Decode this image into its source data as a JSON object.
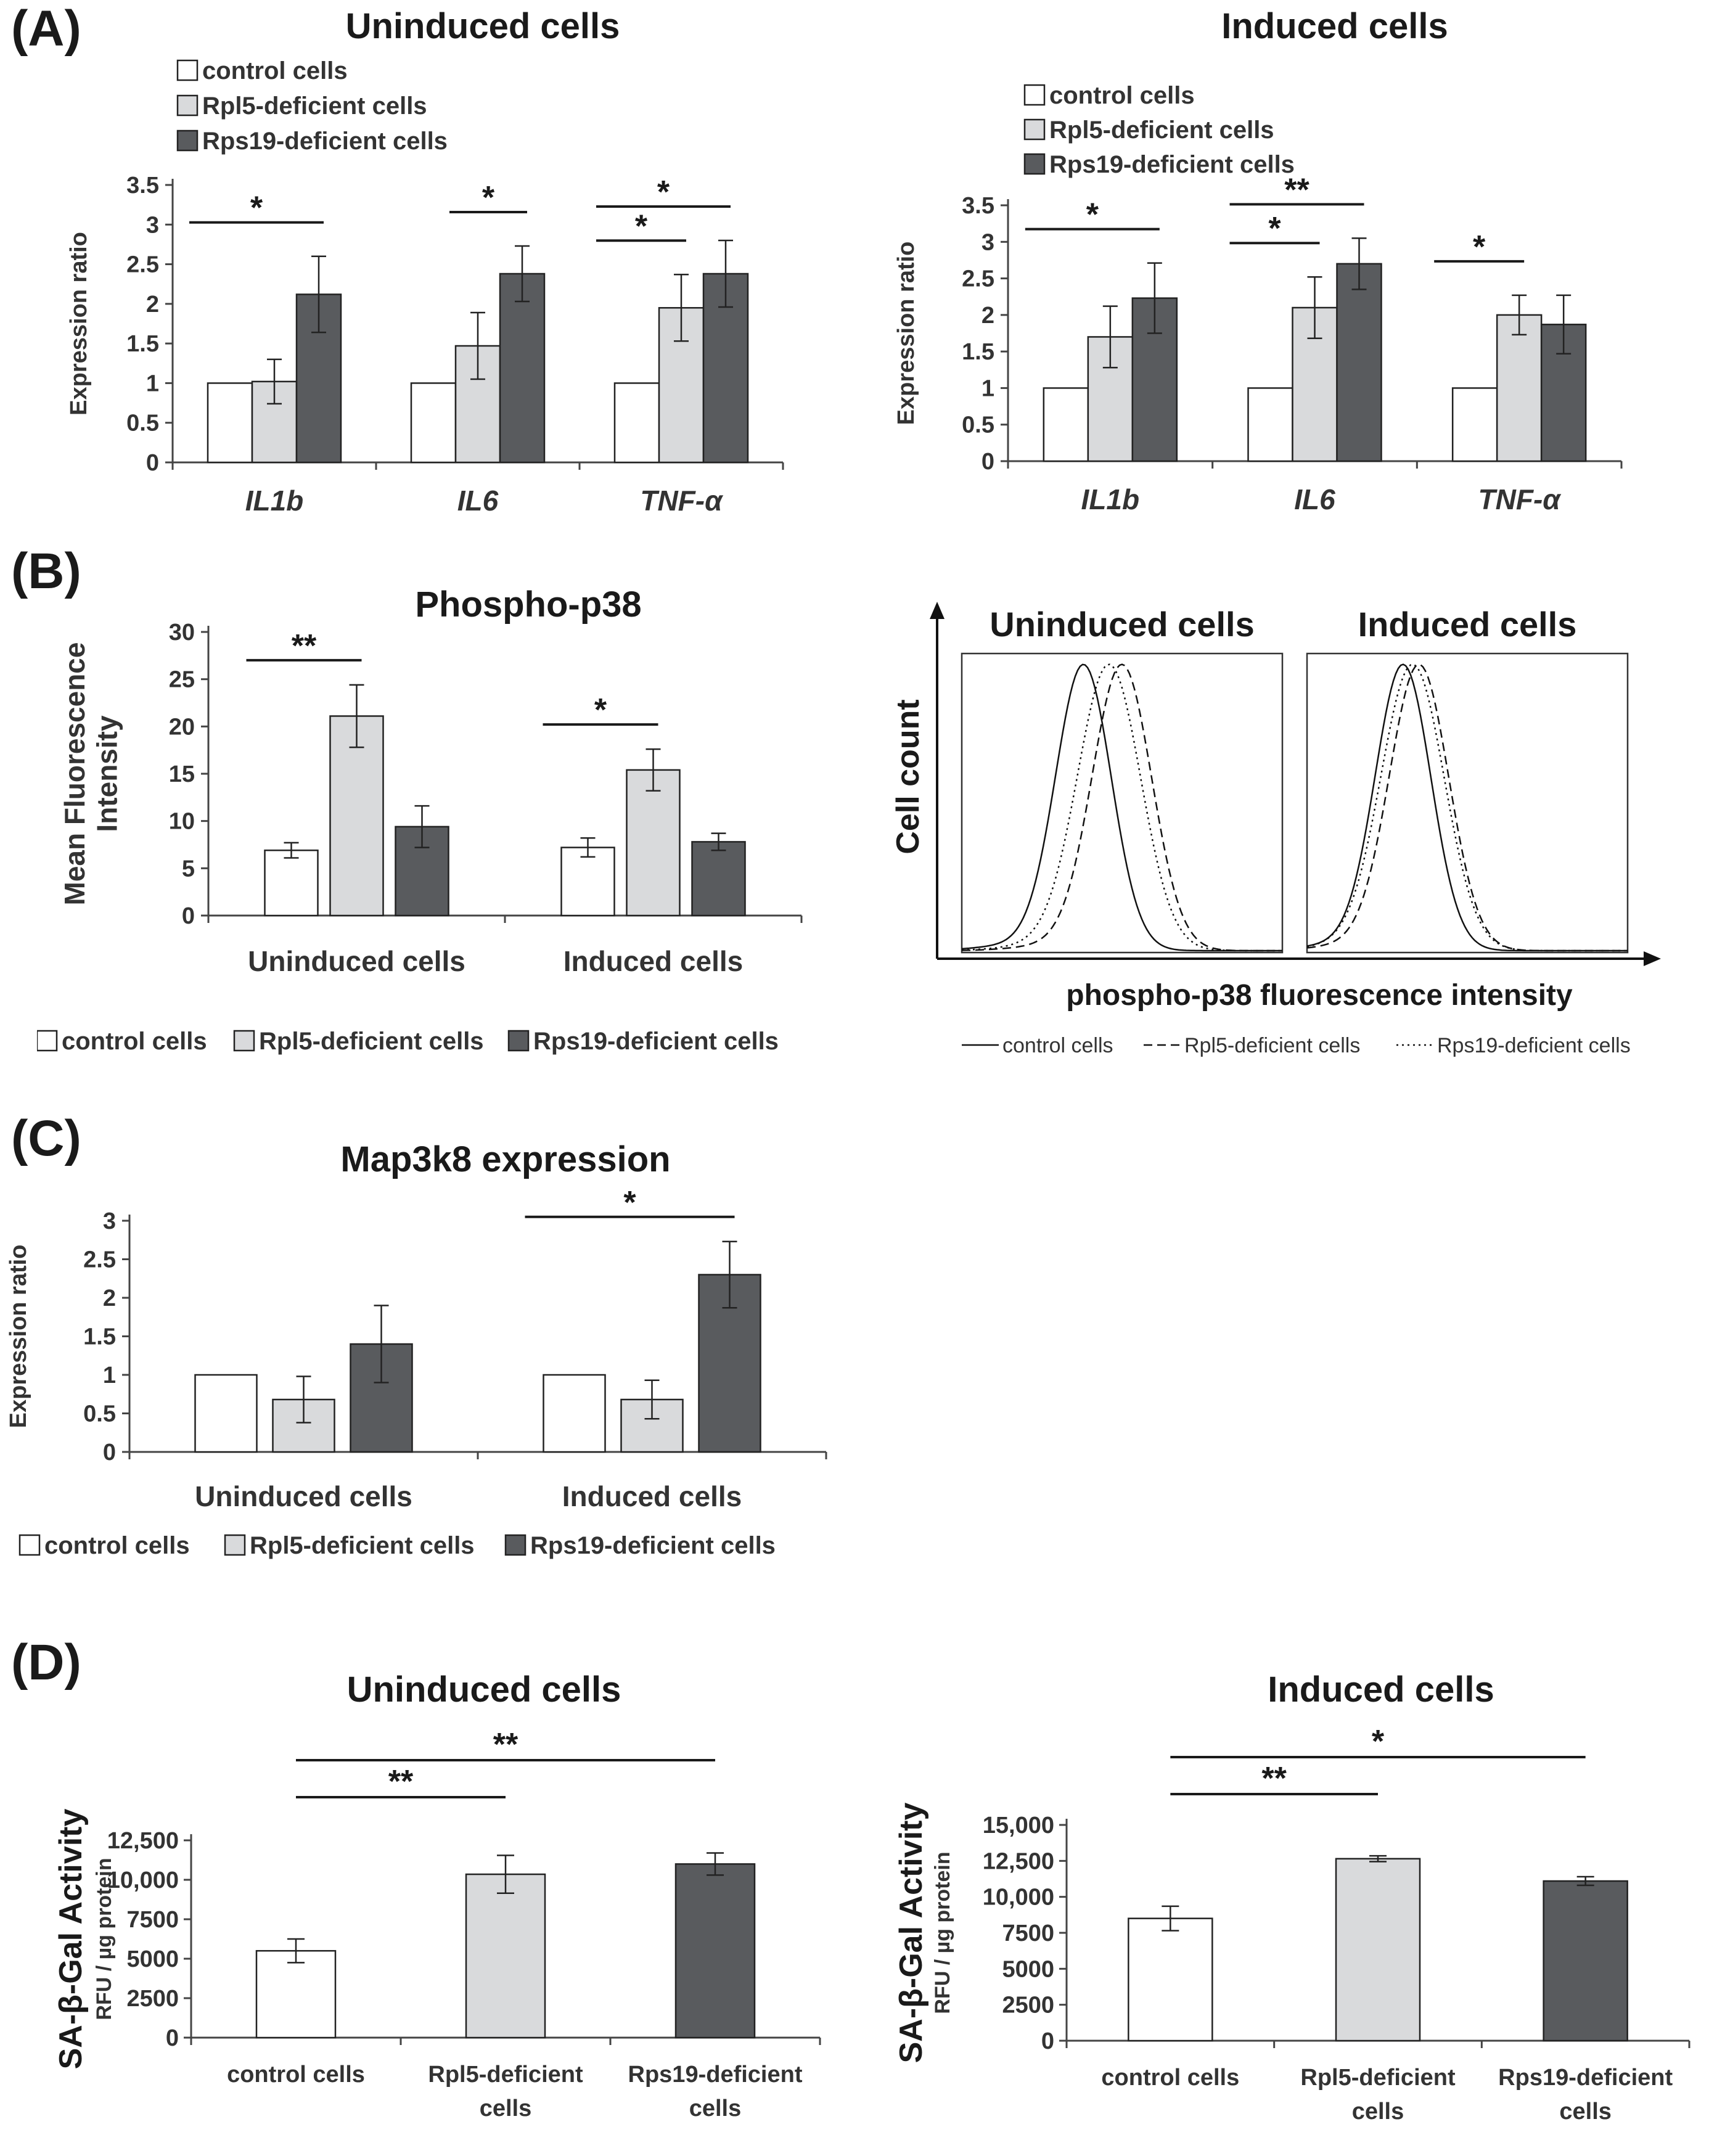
{
  "panels": {
    "A": "(A)",
    "B": "(B)",
    "C": "(C)",
    "D": "(D)"
  },
  "chart_data": [
    {
      "id": "A1",
      "type": "bar",
      "title": "Uninduced cells",
      "ylabel": "Expression ratio",
      "ylim": [
        0,
        3.5
      ],
      "yticks": [
        "0",
        "0.5",
        "1",
        "1.5",
        "2",
        "2.5",
        "3",
        "3.5"
      ],
      "categories": [
        "IL1b",
        "IL6",
        "TNF-α"
      ],
      "series": [
        {
          "name": "control cells",
          "color": "#ffffff",
          "values": [
            1,
            1,
            1
          ],
          "errors": [
            0,
            0,
            0
          ]
        },
        {
          "name": "Rpl5-deficient cells",
          "color": "#d9dadc",
          "values": [
            1.02,
            1.47,
            1.95
          ],
          "errors": [
            0.28,
            0.42,
            0.42
          ]
        },
        {
          "name": "Rps19-deficient cells",
          "color": "#595b5e",
          "values": [
            2.12,
            2.38,
            2.38
          ],
          "errors": [
            0.48,
            0.35,
            0.42
          ]
        }
      ],
      "annotations": [
        {
          "label": "*",
          "group": 0,
          "from": 0,
          "to": 2
        },
        {
          "label": "*",
          "group": 1,
          "from": 1,
          "to": 2
        },
        {
          "label": "*",
          "group": 2,
          "from": 0,
          "to": 1
        },
        {
          "label": "*",
          "group": 2,
          "from": 0,
          "to": 2
        }
      ],
      "legend_position": "top-left"
    },
    {
      "id": "A2",
      "type": "bar",
      "title": "Induced cells",
      "ylabel": "Expression ratio",
      "ylim": [
        0,
        3.5
      ],
      "yticks": [
        "0",
        "0.5",
        "1",
        "1.5",
        "2",
        "2.5",
        "3",
        "3.5"
      ],
      "categories": [
        "IL1b",
        "IL6",
        "TNF-α"
      ],
      "series": [
        {
          "name": "control cells",
          "color": "#ffffff",
          "values": [
            1,
            1,
            1
          ],
          "errors": [
            0,
            0,
            0
          ]
        },
        {
          "name": "Rpl5-deficient cells",
          "color": "#d9dadc",
          "values": [
            1.7,
            2.1,
            2.0
          ],
          "errors": [
            0.42,
            0.42,
            0.27
          ]
        },
        {
          "name": "Rps19-deficient cells",
          "color": "#595b5e",
          "values": [
            2.23,
            2.7,
            1.87
          ],
          "errors": [
            0.48,
            0.35,
            0.4
          ]
        }
      ],
      "annotations": [
        {
          "label": "*",
          "group": 0,
          "from": 0,
          "to": 2
        },
        {
          "label": "*",
          "group": 1,
          "from": 0,
          "to": 1
        },
        {
          "label": "**",
          "group": 1,
          "from": 0,
          "to": 2
        },
        {
          "label": "*",
          "group": 2,
          "from": 0,
          "to": 1
        }
      ],
      "legend_position": "top-left"
    },
    {
      "id": "B1",
      "type": "bar",
      "title": "Phospho-p38",
      "ylabel": "Mean Fluorescence Intensity",
      "ylim": [
        0,
        30
      ],
      "yticks": [
        "0",
        "5",
        "10",
        "15",
        "20",
        "25",
        "30"
      ],
      "categories": [
        "Uninduced cells",
        "Induced cells"
      ],
      "series": [
        {
          "name": "control cells",
          "color": "#ffffff",
          "values": [
            6.9,
            7.2
          ],
          "errors": [
            0.8,
            1.0
          ]
        },
        {
          "name": "Rpl5-deficient cells",
          "color": "#d9dadc",
          "values": [
            21.1,
            15.4
          ],
          "errors": [
            3.3,
            2.2
          ]
        },
        {
          "name": "Rps19-deficient cells",
          "color": "#595b5e",
          "values": [
            9.4,
            7.8
          ],
          "errors": [
            2.2,
            0.9
          ]
        }
      ],
      "annotations": [
        {
          "label": "**",
          "group": 0,
          "from": 0,
          "to": 1
        },
        {
          "label": "*",
          "group": 1,
          "from": 0,
          "to": 1
        }
      ],
      "legend_position": "bottom"
    },
    {
      "id": "B2",
      "type": "line",
      "titles": [
        "Uninduced cells",
        "Induced cells"
      ],
      "xlabel": "phospho-p38 fluorescence intensity",
      "ylabel": "Cell count",
      "series": [
        {
          "name": "control cells",
          "style": "solid",
          "peaks": [
            0.38,
            0.3
          ]
        },
        {
          "name": "Rpl5-deficient cells",
          "style": "dashed",
          "peaks": [
            0.5,
            0.35
          ]
        },
        {
          "name": "Rps19-deficient cells",
          "style": "dotted",
          "peaks": [
            0.46,
            0.33
          ]
        }
      ],
      "legend_position": "bottom"
    },
    {
      "id": "C",
      "type": "bar",
      "title": "Map3k8 expression",
      "ylabel": "Expression ratio",
      "ylim": [
        0,
        3
      ],
      "yticks": [
        "0",
        "0.5",
        "1",
        "1.5",
        "2",
        "2.5",
        "3"
      ],
      "categories": [
        "Uninduced cells",
        "Induced cells"
      ],
      "series": [
        {
          "name": "control cells",
          "color": "#ffffff",
          "values": [
            1,
            1
          ],
          "errors": [
            0,
            0
          ]
        },
        {
          "name": "Rpl5-deficient cells",
          "color": "#d9dadc",
          "values": [
            0.68,
            0.68
          ],
          "errors": [
            0.3,
            0.25
          ]
        },
        {
          "name": "Rps19-deficient cells",
          "color": "#595b5e",
          "values": [
            1.4,
            2.3
          ],
          "errors": [
            0.5,
            0.43
          ]
        }
      ],
      "annotations": [
        {
          "label": "*",
          "group": 1,
          "from": 0,
          "to": 2
        }
      ],
      "legend_position": "bottom"
    },
    {
      "id": "D1",
      "type": "bar",
      "title": "Uninduced cells",
      "ylabel": "SA-β-Gal Activity",
      "ylabel2": "RFU / µg protein",
      "ylim": [
        0,
        12500
      ],
      "yticks": [
        "0",
        "2500",
        "5000",
        "7500",
        "10,000",
        "12,500"
      ],
      "categories": [
        "control cells",
        "Rpl5-deficient cells",
        "Rps19-deficient cells"
      ],
      "values": [
        5500,
        10350,
        11000
      ],
      "errors": [
        750,
        1200,
        700
      ],
      "colors": [
        "#ffffff",
        "#d9dadc",
        "#595b5e"
      ],
      "annotations": [
        {
          "label": "**",
          "from": 0,
          "to": 1
        },
        {
          "label": "**",
          "from": 0,
          "to": 2
        }
      ]
    },
    {
      "id": "D2",
      "type": "bar",
      "title": "Induced cells",
      "ylabel": "SA-β-Gal Activity",
      "ylabel2": "RFU / µg protein",
      "ylim": [
        0,
        15000
      ],
      "yticks": [
        "0",
        "2500",
        "5000",
        "7500",
        "10,000",
        "12,500",
        "15,000"
      ],
      "categories": [
        "control cells",
        "Rpl5-deficient cells",
        "Rps19-deficient cells"
      ],
      "values": [
        8500,
        12650,
        11100
      ],
      "errors": [
        850,
        200,
        300
      ],
      "colors": [
        "#ffffff",
        "#d9dadc",
        "#595b5e"
      ],
      "annotations": [
        {
          "label": "**",
          "from": 0,
          "to": 1
        },
        {
          "label": "*",
          "from": 0,
          "to": 2
        }
      ]
    }
  ]
}
